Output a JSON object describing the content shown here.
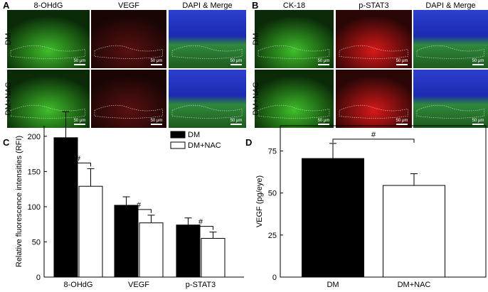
{
  "panels": [
    {
      "label": "A",
      "columns": [
        "8-OHdG",
        "VEGF",
        "DAPI & Merge"
      ],
      "rows": [
        "DM",
        "DM+NAC"
      ],
      "scale_bar": "50 μm"
    },
    {
      "label": "B",
      "columns": [
        "CK-18",
        "p-STAT3",
        "DAPI & Merge"
      ],
      "rows": [
        "DM",
        "DM+NAC"
      ],
      "scale_bar": "50 μm"
    }
  ],
  "chart_data": [
    {
      "type": "bar",
      "label": "C",
      "ylabel": "Relative fluorescence intensities (RFI)",
      "categories": [
        "8-OHdG",
        "VEGF",
        "p-STAT3"
      ],
      "series": [
        {
          "name": "DM",
          "color": "#000000",
          "values": [
            198,
            102,
            74
          ],
          "errors": [
            37,
            12,
            10
          ]
        },
        {
          "name": "DM+NAC",
          "color": "#ffffff",
          "values": [
            129,
            77,
            55
          ],
          "errors": [
            25,
            11,
            9
          ]
        }
      ],
      "ylim": [
        0,
        215
      ],
      "yticks": [
        0,
        50,
        100,
        150,
        200
      ],
      "annotations": [
        "#",
        "#",
        "#"
      ]
    },
    {
      "type": "bar",
      "label": "D",
      "ylabel": "VEGF (pg/eye)",
      "categories": [
        "DM",
        "DM+NAC"
      ],
      "series": [
        {
          "color": "#000000",
          "values": [
            70.5,
            54.5
          ],
          "errors": [
            9,
            7
          ]
        }
      ],
      "bar_colors": [
        "#000000",
        "#ffffff"
      ],
      "ylim": [
        0,
        90
      ],
      "yticks": [
        0,
        25,
        50,
        75
      ],
      "annotations": [
        "#"
      ]
    }
  ]
}
